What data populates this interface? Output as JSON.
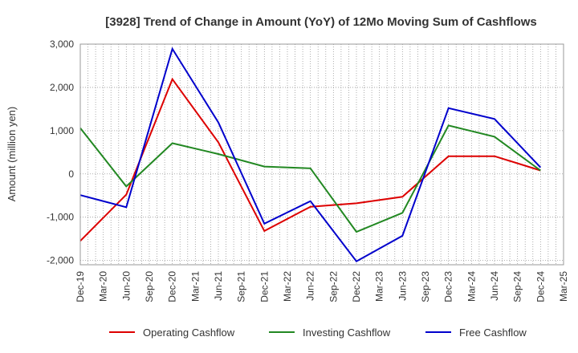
{
  "chart_data": {
    "type": "line",
    "title": "[3928]  Trend of Change in Amount (YoY) of 12Mo Moving Sum of Cashflows",
    "xlabel": "",
    "ylabel": "Amount (million yen)",
    "ylim": [
      -2100,
      3000
    ],
    "yticks": [
      3000,
      2000,
      1000,
      0,
      -1000,
      -2000
    ],
    "ytick_labels": [
      "3,000",
      "2,000",
      "1,000",
      "0",
      "-1,000",
      "-2,000"
    ],
    "categories": [
      "Dec-19",
      "Mar-20",
      "Jun-20",
      "Sep-20",
      "Dec-20",
      "Mar-21",
      "Jun-21",
      "Sep-21",
      "Dec-21",
      "Mar-22",
      "Jun-22",
      "Sep-22",
      "Dec-22",
      "Mar-23",
      "Jun-23",
      "Sep-23",
      "Dec-23",
      "Mar-24",
      "Jun-24",
      "Sep-24",
      "Dec-24",
      "Mar-25"
    ],
    "grid": true,
    "legend_position": "bottom",
    "series": [
      {
        "name": "Operating Cashflow",
        "color": "#dd0000",
        "values": [
          -1550,
          null,
          -480,
          null,
          2190,
          null,
          730,
          null,
          -1320,
          null,
          -760,
          null,
          -680,
          null,
          -530,
          null,
          410,
          null,
          410,
          null,
          80,
          null
        ]
      },
      {
        "name": "Investing Cashflow",
        "color": "#228822",
        "values": [
          1060,
          null,
          -290,
          null,
          710,
          null,
          460,
          null,
          170,
          null,
          130,
          null,
          -1340,
          null,
          -900,
          null,
          1120,
          null,
          860,
          null,
          80,
          null
        ]
      },
      {
        "name": "Free Cashflow",
        "color": "#0000cc",
        "values": [
          -490,
          null,
          -770,
          null,
          2890,
          null,
          1190,
          null,
          -1150,
          null,
          -630,
          null,
          -2020,
          null,
          -1430,
          null,
          1520,
          null,
          1270,
          null,
          150,
          null
        ]
      }
    ]
  }
}
